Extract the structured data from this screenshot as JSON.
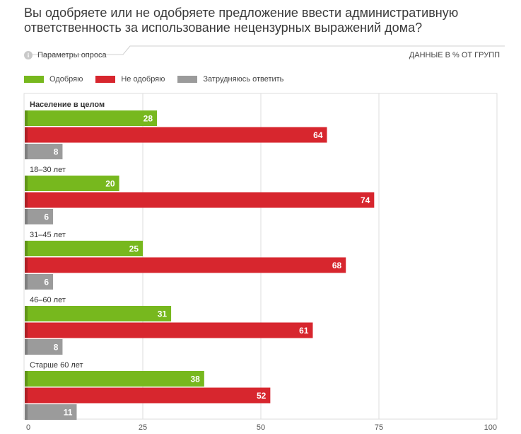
{
  "title": "Вы одобряете или не одобряете предложение ввести административную ответственность за использование нецензурных выражений дома?",
  "params_label": "Параметры опроса",
  "params_icon": "info-icon",
  "units_label": "ДАННЫЕ В % ОТ ГРУПП",
  "colors": {
    "approve": "#77b81e",
    "disapprove": "#d7262e",
    "undecided": "#9b9b9b"
  },
  "chart_data": {
    "type": "bar",
    "orientation": "horizontal",
    "title": "Вы одобряете или не одобряете предложение ввести административную ответственность за использование нецензурных выражений дома?",
    "xlim": [
      0,
      100
    ],
    "xticks": [
      "0",
      "25",
      "50",
      "75",
      "100"
    ],
    "categories": [
      "Население в целом",
      "18–30 лет",
      "31–45 лет",
      "46–60 лет",
      "Старше 60 лет"
    ],
    "series": [
      {
        "name": "Одобряю",
        "values": [
          28,
          20,
          25,
          31,
          38
        ]
      },
      {
        "name": "Не одобряю",
        "values": [
          64,
          74,
          68,
          61,
          52
        ]
      },
      {
        "name": "Затрудняюсь ответить",
        "values": [
          8,
          6,
          6,
          8,
          11
        ]
      }
    ],
    "legend": "top-left",
    "grid": true
  }
}
